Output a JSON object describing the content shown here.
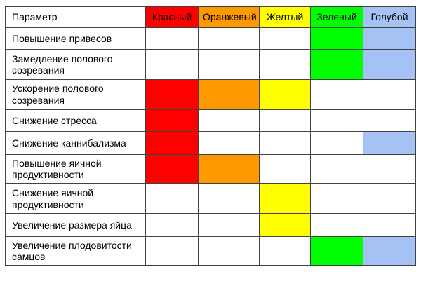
{
  "chart_data": {
    "type": "table",
    "param_header": "Параметр",
    "color_columns": [
      {
        "label": "Красный",
        "hex": "#ff0000"
      },
      {
        "label": "Оранжевый",
        "hex": "#ff9900"
      },
      {
        "label": "Желтый",
        "hex": "#ffff00"
      },
      {
        "label": "Зеленый",
        "hex": "#00ff00"
      },
      {
        "label": "Голубой",
        "hex": "#a4c2f4"
      }
    ],
    "rows": [
      {
        "param": "Повышение привесов",
        "filled": [
          false,
          false,
          false,
          true,
          true
        ]
      },
      {
        "param": "Замедление полового созревания",
        "filled": [
          false,
          false,
          false,
          true,
          true
        ]
      },
      {
        "param": "Ускорение полового созревания",
        "filled": [
          true,
          true,
          true,
          false,
          false
        ]
      },
      {
        "param": "Снижение стресса",
        "filled": [
          true,
          false,
          false,
          false,
          false
        ]
      },
      {
        "param": "Снижение каннибализма",
        "filled": [
          true,
          false,
          false,
          false,
          true
        ]
      },
      {
        "param": "Повышение яичной продуктивности",
        "filled": [
          true,
          true,
          false,
          false,
          false
        ]
      },
      {
        "param": "Снижение яичной продуктивности",
        "filled": [
          false,
          false,
          true,
          false,
          false
        ]
      },
      {
        "param": "Увеличение размера яйца",
        "filled": [
          false,
          false,
          true,
          false,
          false
        ]
      },
      {
        "param": "Увеличение плодовитости самцов",
        "filled": [
          false,
          false,
          false,
          true,
          true
        ]
      }
    ]
  },
  "style": {
    "background": "#ffffff",
    "border_color": "#424242",
    "text_color": "#000000"
  }
}
